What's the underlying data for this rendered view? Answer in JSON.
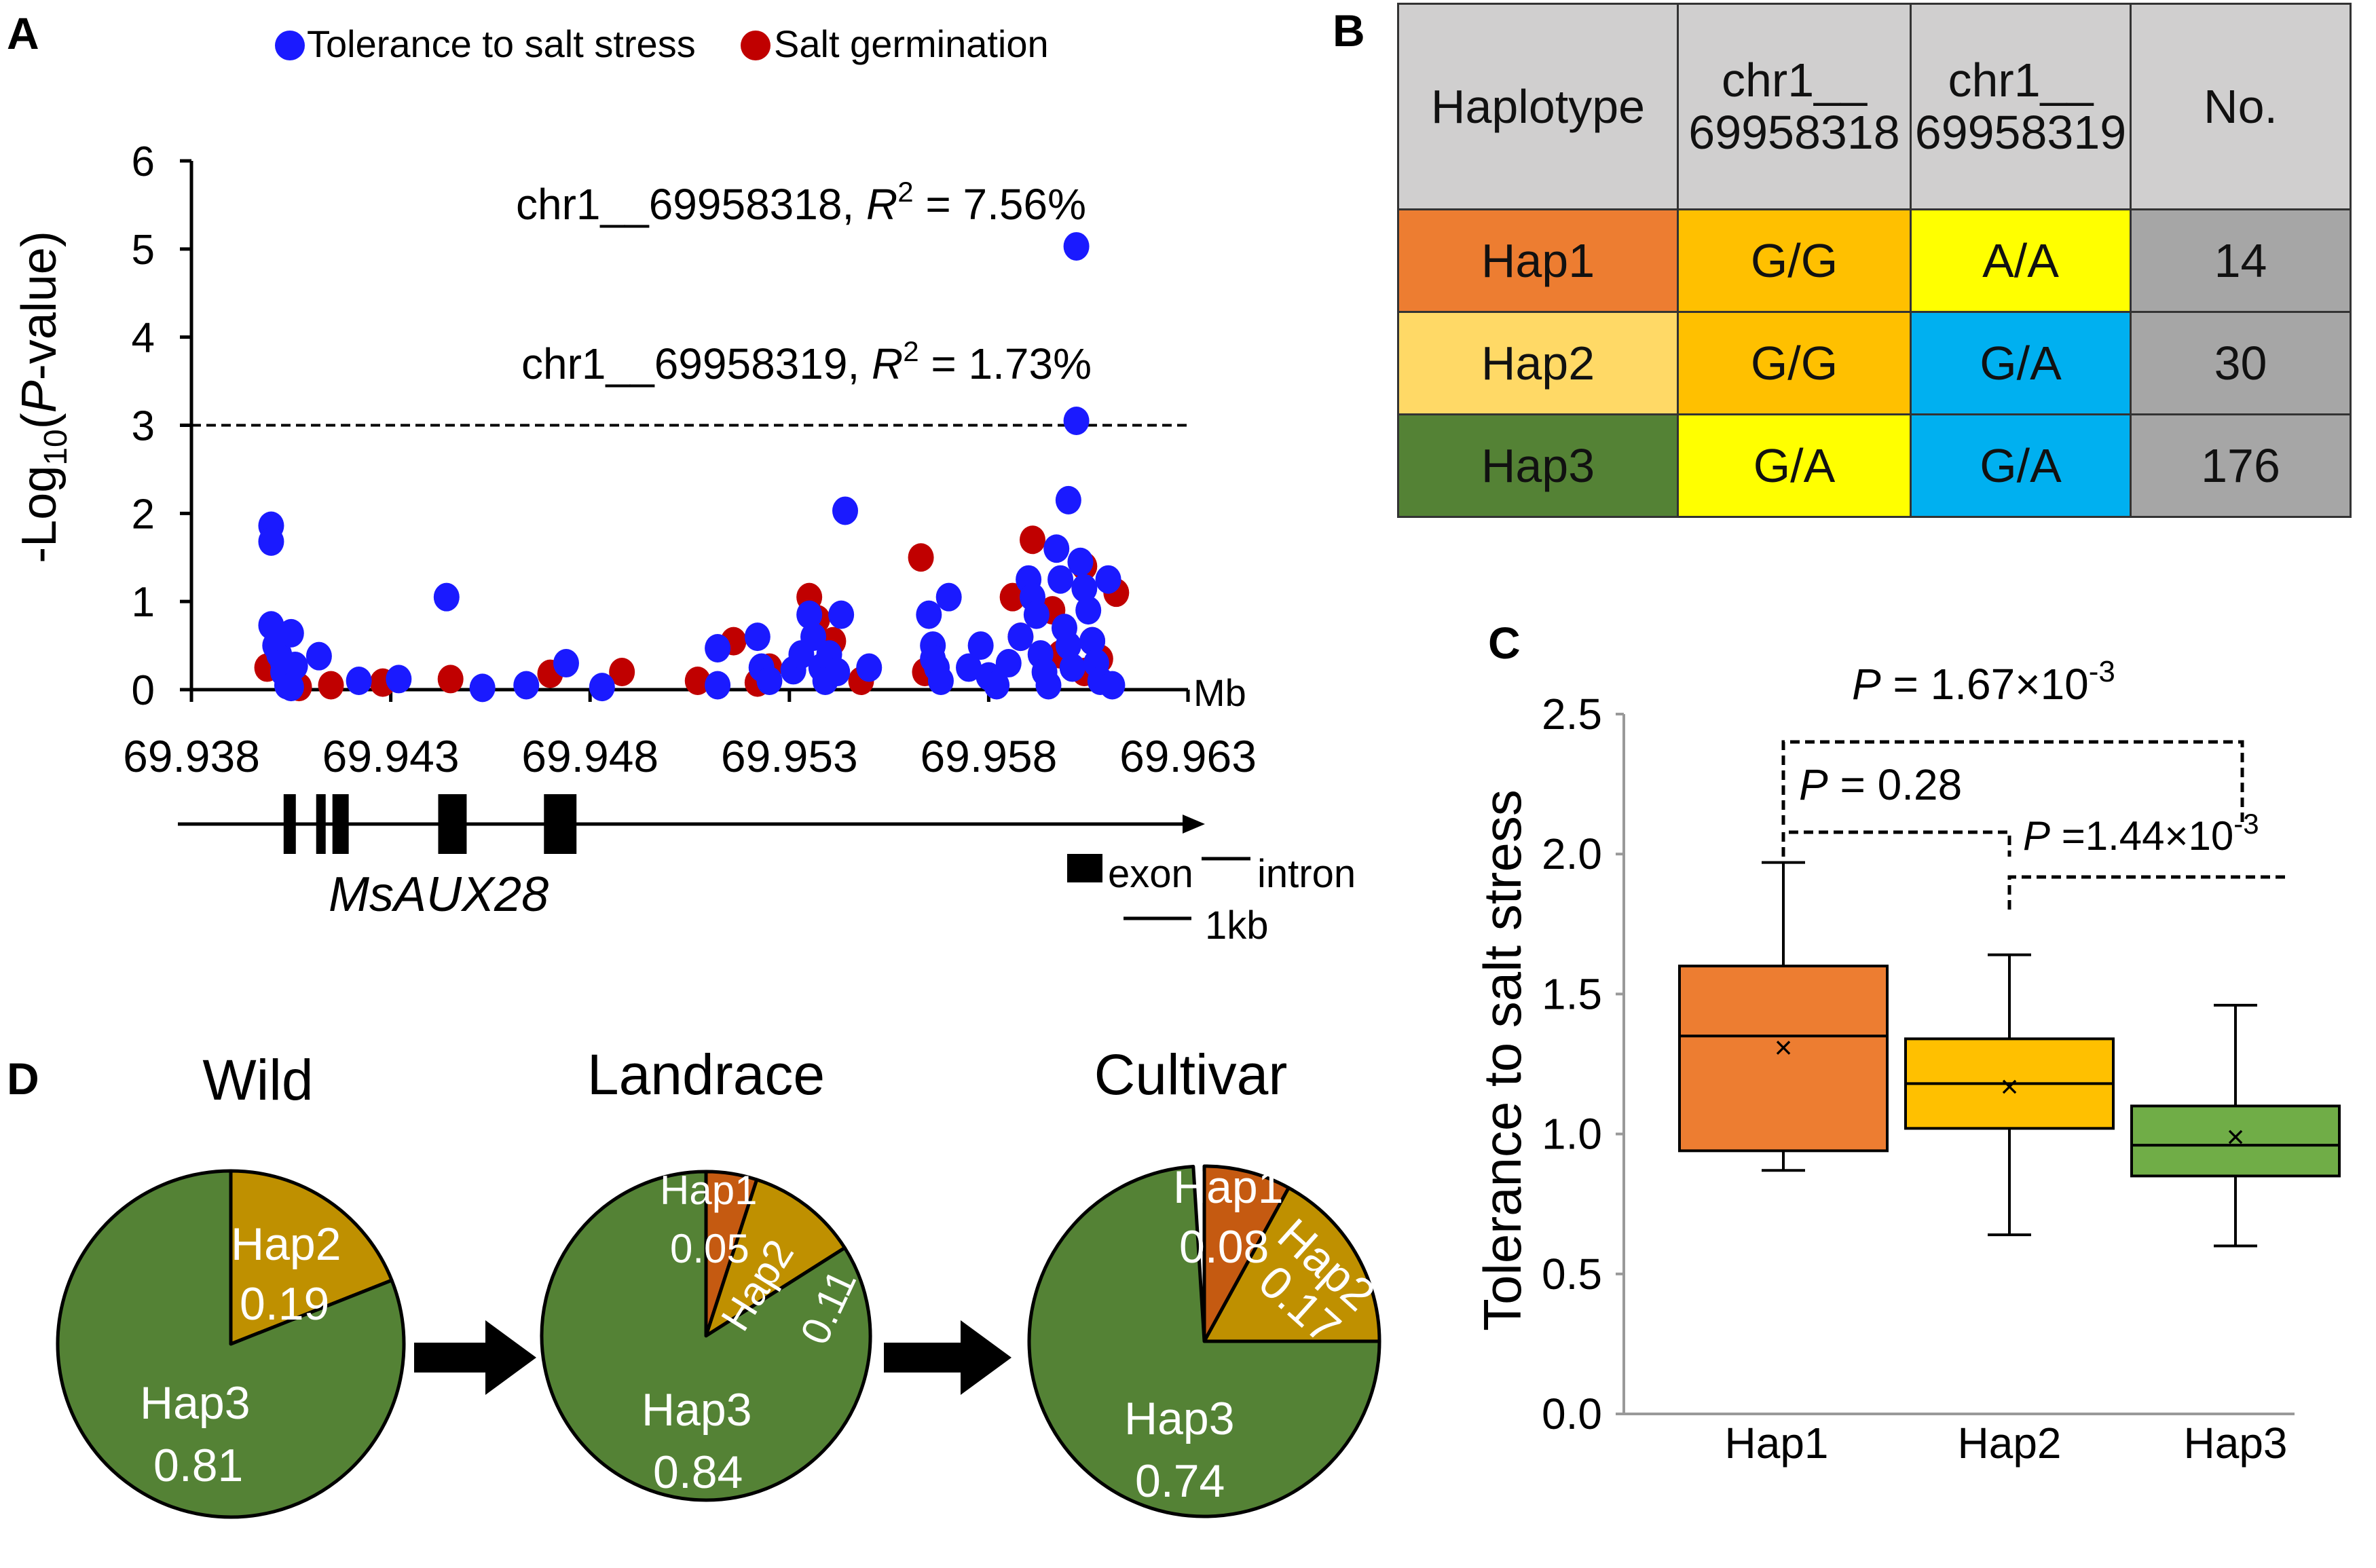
{
  "panelA": {
    "label": "A",
    "legend": [
      {
        "name": "Tolerance to salt stress",
        "color": "#1a1aff"
      },
      {
        "name": "Salt germination",
        "color": "#c00000"
      }
    ],
    "ylabel_prefix": "-Log",
    "ylabel_sub": "10",
    "ylabel_open": "(",
    "ylabel_p": "P",
    "ylabel_rest": "-value)",
    "unit": "Mb",
    "annot1_text": "chr1__69958318, ",
    "annot1_r2": "R",
    "annot1_sup": "2",
    "annot1_val": " = 7.56%",
    "annot2_text": "chr1__69958319, ",
    "annot2_r2": "R",
    "annot2_sup": "2",
    "annot2_val": " = 1.73%",
    "gene_name": "MsAUX28",
    "exon_label": "exon",
    "intron_label": "intron",
    "scale_label": "1kb"
  },
  "panelB": {
    "label": "B",
    "headers": [
      "Haplotype",
      "chr1__ 69958318",
      "chr1__ 69958319",
      "No."
    ],
    "rows": [
      {
        "hap": "Hap1",
        "s1": "G/G",
        "s2": "A/A",
        "n": "14",
        "c_hap": "#ed7d31",
        "c1": "#ffc000",
        "c2": "#ffff00"
      },
      {
        "hap": "Hap2",
        "s1": "G/G",
        "s2": "G/A",
        "n": "30",
        "c_hap": "#ffd966",
        "c1": "#ffc000",
        "c2": "#00b0f0"
      },
      {
        "hap": "Hap3",
        "s1": "G/A",
        "s2": "G/A",
        "n": "176",
        "c_hap": "#548235",
        "c1": "#ffff00",
        "c2": "#00b0f0"
      }
    ],
    "no_color": "#a6a6a6"
  },
  "panelC": {
    "label": "C",
    "ylabel": "Tolerance to salt stress",
    "p1_pre": "P",
    "p1_text": " = 1.67×10",
    "p1_sup": "-3",
    "p2_pre": "P",
    "p2_text": " = 0.28",
    "p3_pre": "P",
    "p3_text": " =1.44×10",
    "p3_sup": "-3"
  },
  "panelD": {
    "label": "D",
    "pies": [
      {
        "title": "Wild",
        "slices": [
          {
            "name": "Hap2",
            "value": 0.19
          },
          {
            "name": "Hap3",
            "value": 0.81
          }
        ]
      },
      {
        "title": "Landrace",
        "slices": [
          {
            "name": "Hap1",
            "value": 0.05
          },
          {
            "name": "Hap2",
            "value": 0.11
          },
          {
            "name": "Hap3",
            "value": 0.84
          }
        ]
      },
      {
        "title": "Cultivar",
        "slices": [
          {
            "name": "Hap1",
            "value": 0.08
          },
          {
            "name": "Hap2",
            "value": 0.17
          },
          {
            "name": "Hap3",
            "value": 0.74
          }
        ]
      }
    ],
    "pie_labels": [
      {
        "name": "Hap2",
        "value": "0.19"
      },
      {
        "name": "Hap3",
        "value": "0.81"
      },
      {
        "name": "Hap1",
        "value": "0.05"
      },
      {
        "name": "Hap2",
        "value": "0.11"
      },
      {
        "name": "Hap3",
        "value": "0.84"
      },
      {
        "name": "Hap1",
        "value": "0.08"
      },
      {
        "name": "Hap2",
        "value": "0.17"
      },
      {
        "name": "Hap3",
        "value": "0.74"
      }
    ],
    "colors": {
      "Hap1": "#c55a11",
      "Hap2": "#bf9000",
      "Hap3": "#548235"
    }
  },
  "chart_data": [
    {
      "type": "scatter",
      "title": "",
      "xlabel": "Mb",
      "ylabel": "-Log10(P-value)",
      "xlim": [
        69.938,
        69.963
      ],
      "ylim": [
        0,
        6
      ],
      "xticks": [
        69.938,
        69.943,
        69.948,
        69.953,
        69.958,
        69.963
      ],
      "yticks": [
        0,
        1,
        2,
        3,
        4,
        5,
        6
      ],
      "threshold": 3,
      "gene": {
        "name": "MsAUX28",
        "start": 69.938,
        "end": 69.963,
        "exons": [
          [
            69.9406,
            69.9409
          ],
          [
            69.9414,
            69.9416
          ],
          [
            69.9418,
            69.9422
          ],
          [
            69.9444,
            69.9451
          ],
          [
            69.947,
            69.9478
          ]
        ]
      },
      "series": [
        {
          "name": "Tolerance to salt stress",
          "color": "#1a1aff",
          "points": [
            [
              69.94,
              1.86
            ],
            [
              69.94,
              1.68
            ],
            [
              69.94,
              0.73
            ],
            [
              69.9401,
              0.5
            ],
            [
              69.9402,
              0.4
            ],
            [
              69.9403,
              0.2
            ],
            [
              69.9404,
              0.05
            ],
            [
              69.9405,
              0.64
            ],
            [
              69.9406,
              0.27
            ],
            [
              69.9403,
              0.3
            ],
            [
              69.9405,
              0.03
            ],
            [
              69.9412,
              0.38
            ],
            [
              69.9422,
              0.1
            ],
            [
              69.9432,
              0.12
            ],
            [
              69.9444,
              1.05
            ],
            [
              69.9453,
              0.02
            ],
            [
              69.9464,
              0.05
            ],
            [
              69.9474,
              0.3
            ],
            [
              69.9483,
              0.03
            ],
            [
              69.9512,
              0.47
            ],
            [
              69.9512,
              0.05
            ],
            [
              69.9522,
              0.6
            ],
            [
              69.9523,
              0.25
            ],
            [
              69.9525,
              0.1
            ],
            [
              69.9531,
              0.22
            ],
            [
              69.9533,
              0.4
            ],
            [
              69.9535,
              0.85
            ],
            [
              69.9536,
              0.6
            ],
            [
              69.9538,
              0.25
            ],
            [
              69.9539,
              0.1
            ],
            [
              69.954,
              0.4
            ],
            [
              69.9542,
              0.2
            ],
            [
              69.9543,
              0.85
            ],
            [
              69.9544,
              2.03
            ],
            [
              69.955,
              0.25
            ],
            [
              69.9565,
              0.85
            ],
            [
              69.9566,
              0.5
            ],
            [
              69.9566,
              0.35
            ],
            [
              69.9567,
              0.25
            ],
            [
              69.9568,
              0.1
            ],
            [
              69.957,
              1.05
            ],
            [
              69.9575,
              0.25
            ],
            [
              69.9578,
              0.5
            ],
            [
              69.958,
              0.15
            ],
            [
              69.9582,
              0.05
            ],
            [
              69.9585,
              0.3
            ],
            [
              69.9588,
              0.6
            ],
            [
              69.959,
              1.25
            ],
            [
              69.9591,
              1.05
            ],
            [
              69.9592,
              0.85
            ],
            [
              69.9593,
              0.4
            ],
            [
              69.9594,
              0.2
            ],
            [
              69.9595,
              0.05
            ],
            [
              69.9597,
              1.6
            ],
            [
              69.9598,
              1.25
            ],
            [
              69.9599,
              0.7
            ],
            [
              69.96,
              0.5
            ],
            [
              69.9601,
              0.25
            ],
            [
              69.96,
              2.15
            ],
            [
              69.9602,
              5.03
            ],
            [
              69.9602,
              3.05
            ],
            [
              69.9603,
              1.45
            ],
            [
              69.9604,
              1.15
            ],
            [
              69.9605,
              0.9
            ],
            [
              69.9606,
              0.55
            ],
            [
              69.9607,
              0.3
            ],
            [
              69.9608,
              0.1
            ],
            [
              69.961,
              1.25
            ],
            [
              69.9611,
              0.05
            ]
          ]
        },
        {
          "name": "Salt germination",
          "color": "#c00000",
          "points": [
            [
              69.9399,
              0.25
            ],
            [
              69.9404,
              0.15
            ],
            [
              69.9407,
              0.03
            ],
            [
              69.9415,
              0.05
            ],
            [
              69.9428,
              0.08
            ],
            [
              69.9445,
              0.12
            ],
            [
              69.947,
              0.18
            ],
            [
              69.9488,
              0.2
            ],
            [
              69.9507,
              0.1
            ],
            [
              69.9516,
              0.55
            ],
            [
              69.9522,
              0.08
            ],
            [
              69.9525,
              0.25
            ],
            [
              69.9535,
              1.05
            ],
            [
              69.9537,
              0.8
            ],
            [
              69.9541,
              0.55
            ],
            [
              69.9548,
              0.1
            ],
            [
              69.9563,
              1.5
            ],
            [
              69.9564,
              0.2
            ],
            [
              69.9586,
              1.05
            ],
            [
              69.9588,
              0.6
            ],
            [
              69.9591,
              1.7
            ],
            [
              69.9596,
              0.9
            ],
            [
              69.9598,
              0.4
            ],
            [
              69.9604,
              1.4
            ],
            [
              69.9606,
              0.55
            ],
            [
              69.9608,
              0.35
            ],
            [
              69.9612,
              1.1
            ],
            [
              69.9604,
              0.2
            ]
          ]
        }
      ]
    },
    {
      "type": "box",
      "title": "",
      "xlabel": "",
      "ylabel": "Tolerance to salt stress",
      "ylim": [
        0.0,
        2.5
      ],
      "yticks": [
        0.0,
        0.5,
        1.0,
        1.5,
        2.0,
        2.5
      ],
      "categories": [
        "Hap1",
        "Hap2",
        "Hap3"
      ],
      "boxes": [
        {
          "name": "Hap1",
          "min": 0.87,
          "q1": 0.94,
          "median": 1.35,
          "q3": 1.6,
          "max": 1.97,
          "mean": 1.31,
          "color": "#ed7d31"
        },
        {
          "name": "Hap2",
          "min": 0.64,
          "q1": 1.02,
          "median": 1.18,
          "q3": 1.34,
          "max": 1.64,
          "mean": 1.17,
          "color": "#ffc000"
        },
        {
          "name": "Hap3",
          "min": 0.6,
          "q1": 0.85,
          "median": 0.96,
          "q3": 1.1,
          "max": 1.46,
          "mean": 0.99,
          "color": "#70ad47"
        }
      ],
      "comparisons": [
        {
          "pair": [
            "Hap1",
            "Hap3"
          ],
          "p": "1.67×10^-3"
        },
        {
          "pair": [
            "Hap1",
            "Hap2"
          ],
          "p": "0.28"
        },
        {
          "pair": [
            "Hap2",
            "Hap3"
          ],
          "p": "1.44×10^-3"
        }
      ]
    },
    {
      "type": "pie",
      "title": "Wild",
      "slices": [
        {
          "name": "Hap2",
          "value": 0.19
        },
        {
          "name": "Hap3",
          "value": 0.81
        }
      ]
    },
    {
      "type": "pie",
      "title": "Landrace",
      "slices": [
        {
          "name": "Hap1",
          "value": 0.05
        },
        {
          "name": "Hap2",
          "value": 0.11
        },
        {
          "name": "Hap3",
          "value": 0.84
        }
      ]
    },
    {
      "type": "pie",
      "title": "Cultivar",
      "slices": [
        {
          "name": "Hap1",
          "value": 0.08
        },
        {
          "name": "Hap2",
          "value": 0.17
        },
        {
          "name": "Hap3",
          "value": 0.74
        }
      ]
    }
  ]
}
